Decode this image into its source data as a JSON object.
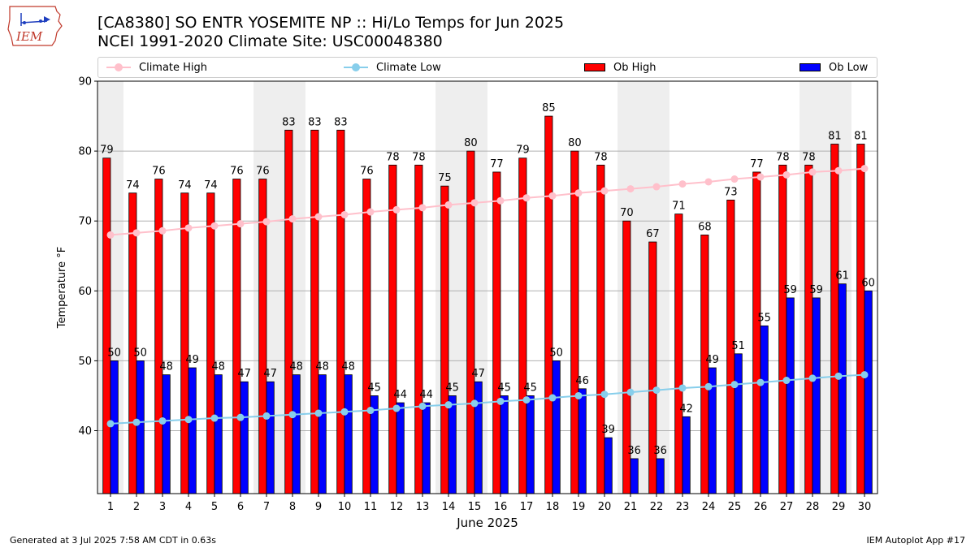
{
  "header": {
    "logo_text": "IEM",
    "title_line1": "[CA8380] SO ENTR YOSEMITE NP :: Hi/Lo Temps for Jun 2025",
    "title_line2": "NCEI 1991-2020 Climate Site: USC00048380"
  },
  "legend": {
    "climate_high": "Climate High",
    "climate_low": "Climate Low",
    "ob_high": "Ob High",
    "ob_low": "Ob Low"
  },
  "footer": {
    "generated": "Generated at 3 Jul 2025 7:58 AM CDT in 0.63s",
    "app": "IEM Autoplot App #17"
  },
  "colors": {
    "ob_high": "#ff0000",
    "ob_low": "#0000ff",
    "climate_high": "#ffc0cb",
    "climate_low": "#87ceeb",
    "weekend_shade": "#eeeeee",
    "grid": "#b0b0b0"
  },
  "chart_data": {
    "type": "bar",
    "title": "[CA8380] SO ENTR YOSEMITE NP :: Hi/Lo Temps for Jun 2025",
    "subtitle": "NCEI 1991-2020 Climate Site: USC00048380",
    "xlabel": "June 2025",
    "ylabel": "Temperature °F",
    "ylim": [
      31,
      90
    ],
    "yticks": [
      40,
      50,
      60,
      70,
      80,
      90
    ],
    "grid": true,
    "legend_position": "top",
    "shaded_days": [
      1,
      7,
      8,
      14,
      15,
      21,
      22,
      28,
      29
    ],
    "categories": [
      "1",
      "2",
      "3",
      "4",
      "5",
      "6",
      "7",
      "8",
      "9",
      "10",
      "11",
      "12",
      "13",
      "14",
      "15",
      "16",
      "17",
      "18",
      "19",
      "20",
      "21",
      "22",
      "23",
      "24",
      "25",
      "26",
      "27",
      "28",
      "29",
      "30"
    ],
    "series": [
      {
        "name": "Ob High",
        "kind": "bar",
        "values": [
          79,
          74,
          76,
          74,
          74,
          76,
          76,
          83,
          83,
          83,
          76,
          78,
          78,
          75,
          80,
          77,
          79,
          85,
          80,
          78,
          70,
          67,
          71,
          68,
          73,
          77,
          78,
          78,
          81,
          81
        ]
      },
      {
        "name": "Ob Low",
        "kind": "bar",
        "values": [
          50,
          50,
          48,
          49,
          48,
          47,
          47,
          48,
          48,
          48,
          45,
          44,
          44,
          45,
          47,
          45,
          45,
          50,
          46,
          39,
          36,
          36,
          42,
          49,
          51,
          55,
          59,
          59,
          61,
          60
        ]
      },
      {
        "name": "Climate High",
        "kind": "line",
        "values": [
          68.0,
          68.3,
          68.6,
          69.0,
          69.3,
          69.6,
          69.9,
          70.3,
          70.6,
          70.9,
          71.3,
          71.6,
          71.9,
          72.3,
          72.6,
          72.9,
          73.3,
          73.6,
          74.0,
          74.3,
          74.6,
          74.9,
          75.3,
          75.6,
          76.0,
          76.3,
          76.6,
          77.0,
          77.2,
          77.5
        ]
      },
      {
        "name": "Climate Low",
        "kind": "line",
        "values": [
          41.0,
          41.2,
          41.4,
          41.6,
          41.8,
          41.9,
          42.1,
          42.3,
          42.5,
          42.7,
          42.9,
          43.2,
          43.5,
          43.7,
          43.9,
          44.2,
          44.4,
          44.7,
          45.0,
          45.2,
          45.5,
          45.8,
          46.1,
          46.3,
          46.6,
          46.9,
          47.2,
          47.5,
          47.8,
          48.0
        ]
      }
    ]
  }
}
